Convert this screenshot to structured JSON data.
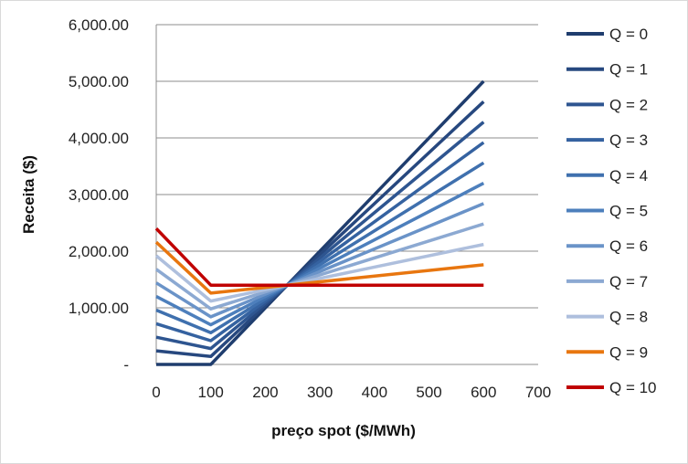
{
  "chart_data": {
    "type": "line",
    "title": "",
    "xlabel": "preço spot ($/MWh)",
    "ylabel": "Receita  ($)",
    "xlim": [
      0,
      700
    ],
    "ylim": [
      0,
      6000
    ],
    "x_ticks": [
      "0",
      "100",
      "200",
      "300",
      "400",
      "500",
      "600",
      "700"
    ],
    "x_tick_values": [
      0,
      100,
      200,
      300,
      400,
      500,
      600,
      700
    ],
    "y_ticks": [
      "-",
      "1,000.00",
      "2,000.00",
      "3,000.00",
      "4,000.00",
      "5,000.00",
      "6,000.00"
    ],
    "y_tick_values": [
      0,
      1000,
      2000,
      3000,
      4000,
      5000,
      6000
    ],
    "grid": "horizontal",
    "legend_position": "right",
    "x": [
      0,
      100,
      600
    ],
    "series": [
      {
        "name": "Q = 0",
        "color": "#1f3d6e",
        "values": [
          0,
          0,
          5000
        ]
      },
      {
        "name": "Q = 1",
        "color": "#27487f",
        "values": [
          240,
          140,
          4640
        ]
      },
      {
        "name": "Q = 2",
        "color": "#2e5590",
        "values": [
          480,
          280,
          4280
        ]
      },
      {
        "name": "Q = 3",
        "color": "#3562a0",
        "values": [
          720,
          420,
          3920
        ]
      },
      {
        "name": "Q = 4",
        "color": "#3f70ae",
        "values": [
          960,
          560,
          3560
        ]
      },
      {
        "name": "Q = 5",
        "color": "#4d7fbc",
        "values": [
          1200,
          700,
          3200
        ]
      },
      {
        "name": "Q = 6",
        "color": "#6a93c8",
        "values": [
          1440,
          840,
          2840
        ]
      },
      {
        "name": "Q = 7",
        "color": "#8ca9d2",
        "values": [
          1680,
          980,
          2480
        ]
      },
      {
        "name": "Q = 8",
        "color": "#aebfdd",
        "values": [
          1920,
          1120,
          2120
        ]
      },
      {
        "name": "Q = 9",
        "color": "#e8760f",
        "values": [
          2160,
          1260,
          1760
        ]
      },
      {
        "name": "Q = 10",
        "color": "#c00000",
        "values": [
          2400,
          1400,
          1400
        ]
      }
    ]
  }
}
